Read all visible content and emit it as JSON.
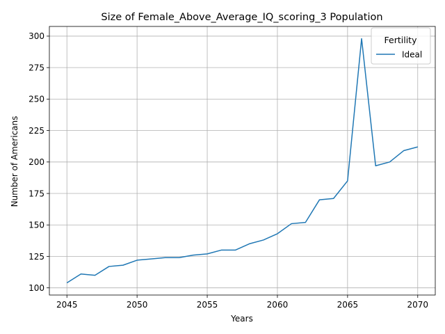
{
  "chart_data": {
    "type": "line",
    "title": "Size of Female_Above_Average_IQ_scoring_3 Population",
    "xlabel": "Years",
    "ylabel": "Number of Americans",
    "xlim": [
      2043.75,
      2071.25
    ],
    "ylim": [
      94.3,
      307.7
    ],
    "xticks": [
      2045,
      2050,
      2055,
      2060,
      2065,
      2070
    ],
    "yticks": [
      100,
      125,
      150,
      175,
      200,
      225,
      250,
      275,
      300
    ],
    "grid": true,
    "legend": {
      "title": "Fertility",
      "placement": "top-right"
    },
    "series": [
      {
        "name": "Ideal",
        "color": "#1f77b4",
        "x": [
          2045,
          2046,
          2047,
          2048,
          2049,
          2050,
          2051,
          2052,
          2053,
          2054,
          2055,
          2056,
          2057,
          2058,
          2059,
          2060,
          2061,
          2062,
          2063,
          2064,
          2065,
          2066,
          2067,
          2068,
          2069,
          2070
        ],
        "y": [
          104,
          111,
          110,
          117,
          118,
          122,
          123,
          124,
          124,
          126,
          127,
          130,
          130,
          135,
          138,
          143,
          151,
          152,
          170,
          171,
          185,
          298,
          197,
          200,
          209,
          212
        ]
      }
    ]
  }
}
